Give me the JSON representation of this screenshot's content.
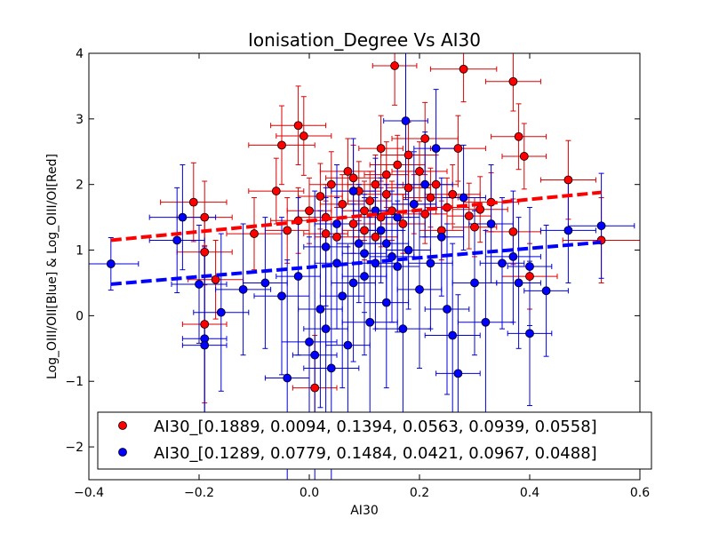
{
  "chart_data": {
    "type": "scatter",
    "title": "Ionisation_Degree Vs AI30",
    "xlabel": "AI30",
    "ylabel": "Log_OIII/OII[Blue] & Log_OIII/OI[Red]",
    "xlim": [
      -0.4,
      0.6
    ],
    "ylim": [
      -2.5,
      4
    ],
    "xticks": [
      "−0.4",
      "−0.2",
      "0.0",
      "0.2",
      "0.4",
      "0.6"
    ],
    "xtick_values": [
      -0.4,
      -0.2,
      0.0,
      0.2,
      0.4,
      0.6
    ],
    "yticks": [
      "−2",
      "−1",
      "0",
      "1",
      "2",
      "3",
      "4"
    ],
    "ytick_values": [
      -2,
      -1,
      0,
      1,
      2,
      3,
      4
    ],
    "legend_position": "lower-center",
    "series": [
      {
        "name": "AI30_[0.1889, 0.0094, 0.1394, 0.0563, 0.0939, 0.0558]",
        "color": "#ff0000",
        "errcolor": "#dd0000",
        "fit": {
          "x": [
            -0.36,
            0.53
          ],
          "y": [
            1.15,
            1.88
          ]
        },
        "points": [
          [
            0.47,
            2.07,
            0.05,
            0.6
          ],
          [
            0.53,
            1.15,
            0.07,
            0.65
          ],
          [
            0.37,
            3.57,
            0.05,
            0.45
          ],
          [
            0.38,
            2.73,
            0.05,
            0.5
          ],
          [
            0.39,
            2.43,
            0.04,
            0.5
          ],
          [
            0.28,
            3.76,
            0.06,
            0.5
          ],
          [
            0.155,
            3.81,
            0.04,
            0.6
          ],
          [
            0.21,
            2.7,
            0.06,
            0.55
          ],
          [
            0.27,
            2.55,
            0.05,
            0.5
          ],
          [
            -0.02,
            2.9,
            0.05,
            0.6
          ],
          [
            -0.01,
            2.74,
            0.05,
            0.6
          ],
          [
            -0.05,
            2.6,
            0.06,
            0.6
          ],
          [
            0.13,
            2.55,
            0.04,
            0.5
          ],
          [
            -0.21,
            1.73,
            0.06,
            0.6
          ],
          [
            -0.19,
            1.5,
            0.05,
            0.55
          ],
          [
            -0.19,
            0.97,
            0.05,
            0.5
          ],
          [
            -0.19,
            -0.13,
            0.04,
            1.2
          ],
          [
            -0.17,
            0.55,
            0.05,
            0.6
          ],
          [
            0.01,
            -1.1,
            0.04,
            0.8
          ],
          [
            0.4,
            0.6,
            0.05,
            0.5
          ],
          [
            0.37,
            1.28,
            0.05,
            0.5
          ],
          [
            0.29,
            1.52,
            0.04,
            0.5
          ],
          [
            0.31,
            1.62,
            0.05,
            0.5
          ],
          [
            0.33,
            1.73,
            0.05,
            0.45
          ],
          [
            0.3,
            1.35,
            0.04,
            0.45
          ],
          [
            -0.1,
            1.25,
            0.05,
            0.55
          ],
          [
            -0.06,
            1.9,
            0.05,
            0.5
          ],
          [
            -0.04,
            1.3,
            0.04,
            0.5
          ],
          [
            0.0,
            1.6,
            0.04,
            0.5
          ],
          [
            0.02,
            1.82,
            0.04,
            0.5
          ],
          [
            0.03,
            1.5,
            0.05,
            0.5
          ],
          [
            0.04,
            2.0,
            0.04,
            0.5
          ],
          [
            0.05,
            1.2,
            0.04,
            0.45
          ],
          [
            0.06,
            1.7,
            0.04,
            0.45
          ],
          [
            0.07,
            2.2,
            0.05,
            0.5
          ],
          [
            0.08,
            1.4,
            0.04,
            0.45
          ],
          [
            0.09,
            1.9,
            0.04,
            0.45
          ],
          [
            0.1,
            1.3,
            0.04,
            0.45
          ],
          [
            0.11,
            1.75,
            0.04,
            0.45
          ],
          [
            0.12,
            2.0,
            0.05,
            0.45
          ],
          [
            0.13,
            1.5,
            0.04,
            0.45
          ],
          [
            0.14,
            1.85,
            0.04,
            0.45
          ],
          [
            0.15,
            1.6,
            0.04,
            0.45
          ],
          [
            0.16,
            2.3,
            0.05,
            0.45
          ],
          [
            0.17,
            1.4,
            0.04,
            0.45
          ],
          [
            0.18,
            1.95,
            0.04,
            0.45
          ],
          [
            0.19,
            1.7,
            0.04,
            0.45
          ],
          [
            0.2,
            2.2,
            0.05,
            0.45
          ],
          [
            0.21,
            1.55,
            0.04,
            0.45
          ],
          [
            0.22,
            1.8,
            0.05,
            0.45
          ],
          [
            0.23,
            2.0,
            0.04,
            0.45
          ],
          [
            0.24,
            1.3,
            0.04,
            0.45
          ],
          [
            0.25,
            1.65,
            0.04,
            0.45
          ],
          [
            0.26,
            1.85,
            0.05,
            0.45
          ],
          [
            0.18,
            2.45,
            0.05,
            0.5
          ],
          [
            0.08,
            2.1,
            0.05,
            0.5
          ],
          [
            0.03,
            1.25,
            0.04,
            0.5
          ],
          [
            0.12,
            1.2,
            0.04,
            0.45
          ],
          [
            -0.02,
            1.45,
            0.05,
            0.5
          ],
          [
            0.14,
            2.15,
            0.04,
            0.5
          ],
          [
            0.1,
            1.6,
            0.04,
            0.45
          ]
        ]
      },
      {
        "name": "AI30_[0.1289, 0.0779, 0.1484, 0.0421, 0.0967, 0.0488]",
        "color": "#0000ff",
        "errcolor": "#0000dd",
        "fit": {
          "x": [
            -0.36,
            0.53
          ],
          "y": [
            0.48,
            1.12
          ]
        },
        "points": [
          [
            -0.36,
            0.79,
            0.05,
            0.4
          ],
          [
            -0.24,
            1.15,
            0.05,
            0.8
          ],
          [
            -0.23,
            1.5,
            0.06,
            0.8
          ],
          [
            -0.2,
            0.48,
            0.05,
            0.9
          ],
          [
            -0.19,
            -0.35,
            0.04,
            1.4
          ],
          [
            -0.19,
            -0.45,
            0.04,
            1.4
          ],
          [
            -0.16,
            0.05,
            0.05,
            1.2
          ],
          [
            -0.12,
            0.4,
            0.05,
            1.0
          ],
          [
            -0.08,
            0.5,
            0.04,
            1.0
          ],
          [
            -0.05,
            0.3,
            0.05,
            1.2
          ],
          [
            -0.04,
            -0.95,
            0.04,
            1.8
          ],
          [
            -0.02,
            0.6,
            0.04,
            1.2
          ],
          [
            0.0,
            -0.4,
            0.05,
            1.6
          ],
          [
            0.01,
            -0.6,
            0.04,
            2.5
          ],
          [
            0.02,
            0.1,
            0.04,
            1.5
          ],
          [
            0.03,
            -0.2,
            0.04,
            2.0
          ],
          [
            0.04,
            -0.8,
            0.05,
            2.2
          ],
          [
            0.05,
            0.8,
            0.04,
            1.0
          ],
          [
            0.06,
            0.3,
            0.04,
            1.4
          ],
          [
            0.07,
            -0.45,
            0.04,
            1.5
          ],
          [
            0.08,
            0.5,
            0.04,
            1.2
          ],
          [
            0.09,
            1.1,
            0.04,
            0.9
          ],
          [
            0.1,
            0.6,
            0.04,
            1.2
          ],
          [
            0.11,
            -0.1,
            0.05,
            1.6
          ],
          [
            0.12,
            0.8,
            0.04,
            1.0
          ],
          [
            0.13,
            1.3,
            0.04,
            0.8
          ],
          [
            0.14,
            0.2,
            0.04,
            1.3
          ],
          [
            0.15,
            0.9,
            0.04,
            1.0
          ],
          [
            0.16,
            1.5,
            0.04,
            0.8
          ],
          [
            0.17,
            -0.2,
            0.05,
            1.5
          ],
          [
            0.175,
            2.97,
            0.04,
            1.2
          ],
          [
            0.18,
            1.0,
            0.04,
            0.9
          ],
          [
            0.19,
            1.7,
            0.04,
            0.8
          ],
          [
            0.2,
            0.4,
            0.04,
            1.2
          ],
          [
            0.21,
            2.0,
            0.05,
            0.8
          ],
          [
            0.22,
            0.8,
            0.04,
            1.0
          ],
          [
            0.23,
            2.55,
            0.04,
            0.9
          ],
          [
            0.24,
            1.2,
            0.04,
            0.9
          ],
          [
            0.25,
            0.1,
            0.04,
            1.3
          ],
          [
            0.26,
            -0.3,
            0.05,
            1.4
          ],
          [
            0.27,
            -0.88,
            0.04,
            1.2
          ],
          [
            0.28,
            1.8,
            0.04,
            0.8
          ],
          [
            0.3,
            0.5,
            0.04,
            1.1
          ],
          [
            0.32,
            -0.1,
            0.05,
            1.4
          ],
          [
            0.33,
            1.4,
            0.04,
            0.9
          ],
          [
            0.35,
            0.8,
            0.04,
            1.0
          ],
          [
            0.37,
            0.9,
            0.05,
            1.0
          ],
          [
            0.38,
            0.5,
            0.04,
            1.0
          ],
          [
            0.4,
            -0.27,
            0.04,
            1.1
          ],
          [
            0.4,
            0.75,
            0.04,
            0.9
          ],
          [
            0.43,
            0.38,
            0.04,
            1.0
          ],
          [
            0.47,
            1.3,
            0.05,
            0.8
          ],
          [
            0.53,
            1.37,
            0.06,
            0.8
          ],
          [
            0.12,
            1.6,
            0.04,
            0.8
          ],
          [
            0.08,
            1.9,
            0.04,
            0.8
          ],
          [
            0.03,
            1.05,
            0.04,
            0.9
          ],
          [
            0.14,
            1.1,
            0.04,
            0.9
          ],
          [
            0.05,
            1.4,
            0.04,
            0.9
          ],
          [
            0.1,
            0.95,
            0.04,
            0.9
          ],
          [
            0.16,
            0.75,
            0.04,
            1.0
          ]
        ]
      }
    ]
  }
}
